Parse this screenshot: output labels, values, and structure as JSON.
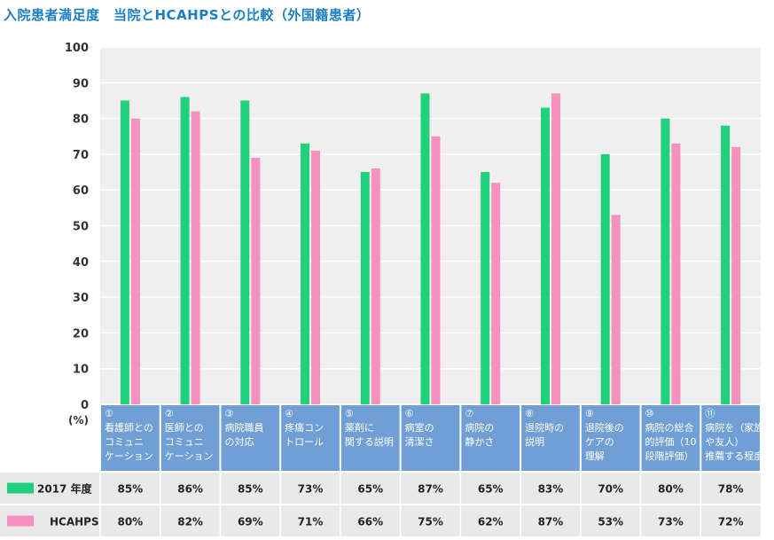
{
  "title": "入院患者満足度　当院とHCAHPSとの比較（外国籍患者）",
  "chart_data": {
    "type": "bar",
    "ylim": [
      0,
      100
    ],
    "yticks": [
      0,
      10,
      20,
      30,
      40,
      50,
      60,
      70,
      80,
      90,
      100
    ],
    "yunit": "(%)",
    "categories": [
      [
        "①",
        "看護師との",
        "コミュニ",
        "ケーション"
      ],
      [
        "②",
        "医師との",
        "コミュニ",
        "ケーション"
      ],
      [
        "③",
        "病院職員",
        "の対応"
      ],
      [
        "④",
        "疼痛コン",
        "トロール"
      ],
      [
        "⑤",
        "薬剤に",
        "関する説明"
      ],
      [
        "⑥",
        "病室の",
        "清潔さ"
      ],
      [
        "⑦",
        "病院の",
        "静かさ"
      ],
      [
        "⑧",
        "退院時の",
        "説明"
      ],
      [
        "⑨",
        "退院後の",
        "ケアの",
        "理解"
      ],
      [
        "⑩",
        "病院の総合",
        "的評価（10",
        "段階評価）"
      ],
      [
        "⑪",
        "病院を（家族",
        "や友人）",
        "推薦する程度"
      ]
    ],
    "series": [
      {
        "name": "2017 年度",
        "color": "#1fd17b",
        "values": [
          85,
          86,
          85,
          73,
          65,
          87,
          65,
          83,
          70,
          80,
          78
        ],
        "labels": [
          "85%",
          "86%",
          "85%",
          "73%",
          "65%",
          "87%",
          "65%",
          "83%",
          "70%",
          "80%",
          "78%"
        ]
      },
      {
        "name": "HCAHPS",
        "color": "#f590bf",
        "values": [
          80,
          82,
          69,
          71,
          66,
          75,
          62,
          87,
          53,
          73,
          72
        ],
        "labels": [
          "80%",
          "82%",
          "69%",
          "71%",
          "66%",
          "75%",
          "62%",
          "87%",
          "53%",
          "73%",
          "72%"
        ]
      }
    ],
    "grid": true,
    "colors": {
      "plot_bg": "#efefef",
      "category_box": "#6f9fd4",
      "table_bg": "#e9e9ea"
    }
  }
}
